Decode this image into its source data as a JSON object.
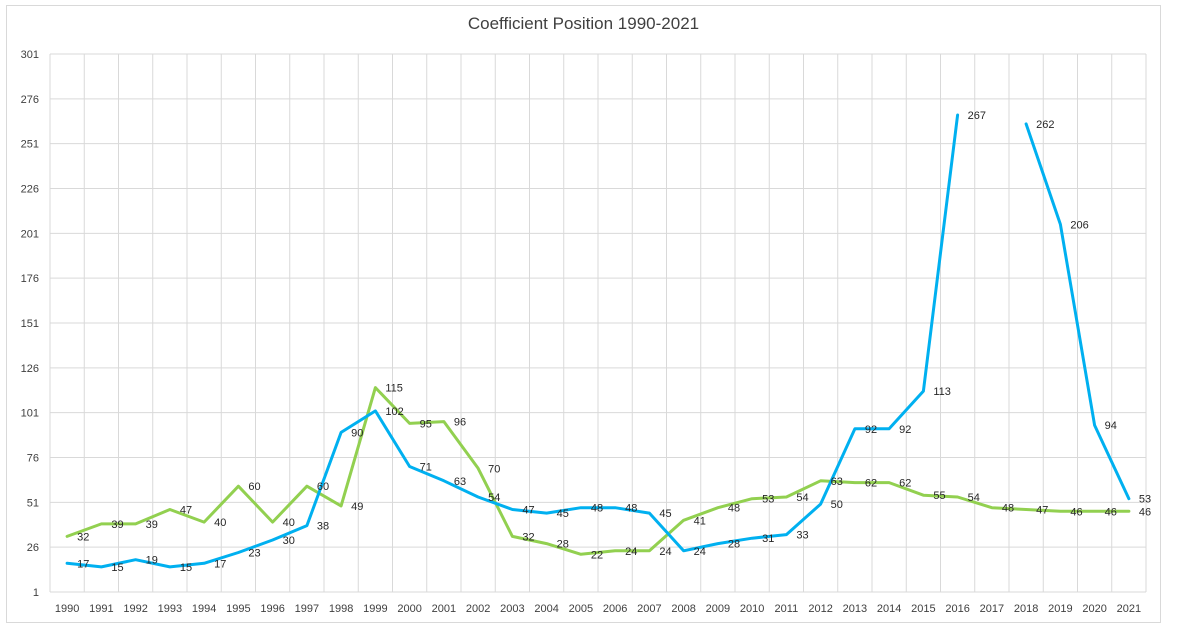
{
  "chart_data": {
    "type": "line",
    "title": "Coefficient Position 1990-2021",
    "xlabel": "",
    "ylabel": "",
    "ylim": [
      1,
      301
    ],
    "yticks": [
      1,
      26,
      51,
      76,
      101,
      126,
      151,
      176,
      201,
      226,
      251,
      276,
      301
    ],
    "grid": true,
    "legend": "none",
    "categories": [
      "1990",
      "1991",
      "1992",
      "1993",
      "1994",
      "1995",
      "1996",
      "1997",
      "1998",
      "1999",
      "2000",
      "2001",
      "2002",
      "2003",
      "2004",
      "2005",
      "2006",
      "2007",
      "2008",
      "2009",
      "2010",
      "2011",
      "2012",
      "2013",
      "2014",
      "2015",
      "2016",
      "2017",
      "2018",
      "2019",
      "2020",
      "2021"
    ],
    "series": [
      {
        "color": "#00b0f0",
        "values": [
          17,
          15,
          19,
          15,
          17,
          23,
          30,
          38,
          90,
          102,
          71,
          63,
          54,
          47,
          45,
          48,
          48,
          45,
          24,
          28,
          31,
          33,
          50,
          92,
          92,
          113,
          267,
          null,
          262,
          206,
          94,
          53
        ],
        "labels": [
          17,
          15,
          19,
          15,
          17,
          23,
          30,
          38,
          90,
          102,
          71,
          63,
          54,
          47,
          45,
          48,
          48,
          45,
          24,
          28,
          31,
          33,
          50,
          92,
          92,
          113,
          267,
          null,
          262,
          206,
          94,
          53
        ]
      },
      {
        "color": "#92d050",
        "values": [
          32,
          39,
          39,
          47,
          40,
          60,
          40,
          60,
          49,
          115,
          95,
          96,
          70,
          32,
          28,
          22,
          24,
          24,
          41,
          48,
          53,
          54,
          63,
          62,
          62,
          55,
          54,
          48,
          47,
          46,
          46,
          46
        ],
        "labels": [
          32,
          39,
          39,
          47,
          40,
          60,
          40,
          60,
          49,
          115,
          95,
          96,
          70,
          32,
          28,
          22,
          24,
          24,
          41,
          48,
          53,
          54,
          63,
          62,
          62,
          55,
          54,
          48,
          47,
          46,
          46,
          46
        ]
      }
    ]
  }
}
